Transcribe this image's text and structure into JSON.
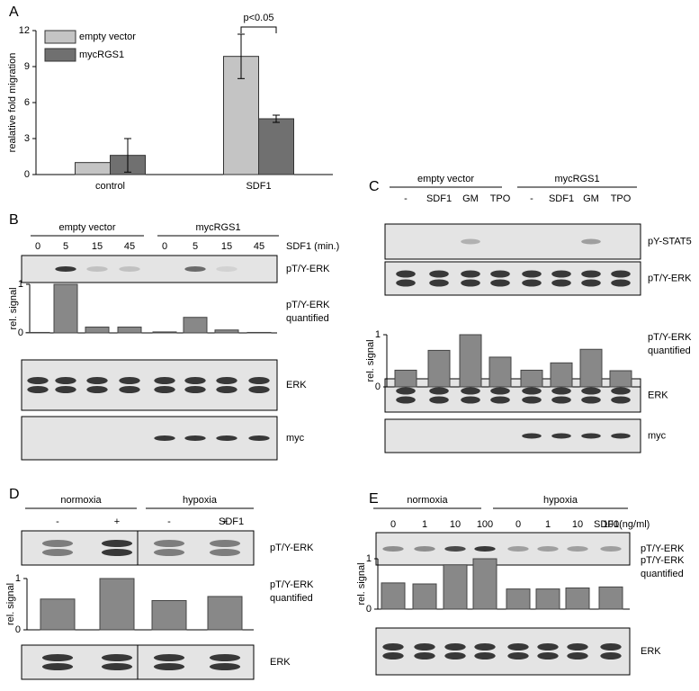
{
  "chart_data": [
    {
      "type": "bar",
      "ylabel": "realative fold migration",
      "categories": [
        "control",
        "SDF1"
      ],
      "series": [
        {
          "name": "empty vector",
          "color": "#c4c4c4",
          "values": [
            1.0,
            9.85
          ],
          "errors": [
            null,
            1.85
          ]
        },
        {
          "name": "mycRGS1",
          "color": "#707070",
          "values": [
            1.6,
            4.65
          ],
          "errors": [
            1.4,
            0.3
          ]
        }
      ],
      "ylim": [
        0,
        12
      ],
      "yticks": [
        0,
        3,
        6,
        9,
        12
      ],
      "annotation": "p<0.05",
      "legend": "upper left"
    },
    {
      "type": "bar",
      "ylabel": "rel. signal",
      "annotation": "pT/Y-ERK quantified",
      "categories": [
        "0",
        "5",
        "15",
        "45",
        "0",
        "5",
        "15",
        "45"
      ],
      "values": [
        0.01,
        1.0,
        0.12,
        0.12,
        0.02,
        0.32,
        0.06,
        0.01
      ],
      "color": "#888888",
      "ylim": [
        0,
        1
      ],
      "yticks": [
        0,
        1
      ]
    },
    {
      "type": "bar",
      "ylabel": "rel. signal",
      "annotation": "pT/Y-ERK quantified",
      "categories": [
        "-",
        "SDF1",
        "GM",
        "TPO",
        "-",
        "SDF1",
        "GM",
        "TPO"
      ],
      "values": [
        0.32,
        0.7,
        1.0,
        0.57,
        0.32,
        0.46,
        0.72,
        0.31
      ],
      "color": "#888888",
      "ylim": [
        0,
        1
      ],
      "yticks": [
        0,
        1
      ]
    },
    {
      "type": "bar",
      "ylabel": "rel. signal",
      "annotation": "pT/Y-ERK quantified",
      "categories": [
        "-",
        "+",
        "-",
        "+"
      ],
      "values": [
        0.6,
        1.0,
        0.57,
        0.65
      ],
      "color": "#888888",
      "ylim": [
        0,
        1
      ],
      "yticks": [
        0,
        1
      ]
    },
    {
      "type": "bar",
      "ylabel": "rel. signal",
      "annotation": "pT/Y-ERK quantified",
      "categories": [
        "0",
        "1",
        "10",
        "100",
        "0",
        "1",
        "10",
        "100"
      ],
      "values": [
        0.52,
        0.5,
        0.88,
        1.0,
        0.4,
        0.4,
        0.42,
        0.44
      ],
      "color": "#888888",
      "ylim": [
        0,
        1
      ],
      "yticks": [
        0,
        1
      ]
    }
  ],
  "panels": [
    {
      "letter": "A"
    },
    {
      "letter": "B",
      "groups": [
        "empty vector",
        "mycRGS1"
      ],
      "condition": "SDF1 (min.)",
      "blots": [
        "pT/Y-ERK",
        "ERK",
        "myc"
      ]
    },
    {
      "letter": "C",
      "groups": [
        "empty vector",
        "mycRGS1"
      ],
      "blots": [
        "pY-STAT5",
        "pT/Y-ERK",
        "ERK",
        "myc"
      ]
    },
    {
      "letter": "D",
      "groups": [
        "normoxia",
        "hypoxia"
      ],
      "condition": "SDF1",
      "blots": [
        "pT/Y-ERK",
        "ERK"
      ]
    },
    {
      "letter": "E",
      "groups": [
        "normoxia",
        "hypoxia"
      ],
      "condition": "SDF1(ng/ml)",
      "blots": [
        "pT/Y-ERK",
        "ERK"
      ]
    }
  ]
}
